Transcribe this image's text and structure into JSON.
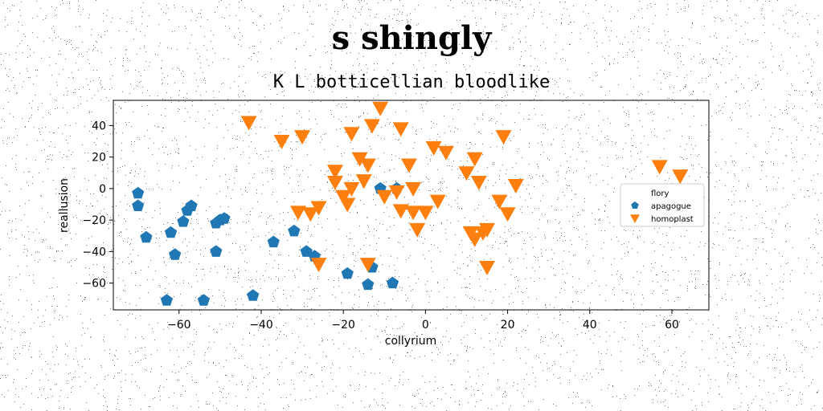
{
  "chart_data": {
    "type": "scatter",
    "title": "s shingly",
    "subtitle": "K L botticellian bloodlike",
    "xlabel": "collyrium",
    "ylabel": "reallusion",
    "xlim": [
      -76,
      69
    ],
    "ylim": [
      -77,
      56
    ],
    "xticks": [
      -60,
      -40,
      -20,
      0,
      20,
      40,
      60
    ],
    "yticks": [
      -60,
      -40,
      -20,
      0,
      20,
      40
    ],
    "xtick_labels": [
      "−60",
      "−40",
      "−20",
      "0",
      "20",
      "40",
      "60"
    ],
    "ytick_labels": [
      "−60",
      "−40",
      "−20",
      "0",
      "20",
      "40"
    ],
    "grid": false,
    "legend_position": "right",
    "legend_labels": [
      "flory",
      "apagogue",
      "homoplast"
    ],
    "series": [
      {
        "name": "flory",
        "marker": "none",
        "color": "#ffffff",
        "points": []
      },
      {
        "name": "apagogue",
        "marker": "pentagon",
        "color": "#1f77b4",
        "points": [
          [
            -70,
            -3
          ],
          [
            -70,
            -11
          ],
          [
            -68,
            -31
          ],
          [
            -62,
            -28
          ],
          [
            -61,
            -42
          ],
          [
            -59,
            -21
          ],
          [
            -58,
            -14
          ],
          [
            -57,
            -11
          ],
          [
            -51,
            -22
          ],
          [
            -50,
            -20
          ],
          [
            -51,
            -40
          ],
          [
            -49,
            -19
          ],
          [
            -63,
            -71
          ],
          [
            -54,
            -71
          ],
          [
            -42,
            -68
          ],
          [
            -37,
            -34
          ],
          [
            -32,
            -27
          ],
          [
            -29,
            -40
          ],
          [
            -27,
            -43
          ],
          [
            -19,
            -54
          ],
          [
            -14,
            -61
          ],
          [
            -13,
            -50
          ],
          [
            -11,
            0
          ],
          [
            -7,
            0
          ],
          [
            -8,
            -60
          ]
        ]
      },
      {
        "name": "homoplast",
        "marker": "triangle-down",
        "color": "#ff7f0e",
        "points": [
          [
            -43,
            42
          ],
          [
            -35,
            30
          ],
          [
            -30,
            33
          ],
          [
            -31,
            -15
          ],
          [
            -28,
            -16
          ],
          [
            -26,
            -12
          ],
          [
            -26,
            -48
          ],
          [
            -22,
            11
          ],
          [
            -22,
            4
          ],
          [
            -20,
            -5
          ],
          [
            -19,
            -10
          ],
          [
            -18,
            0
          ],
          [
            -18,
            35
          ],
          [
            -16,
            19
          ],
          [
            -15,
            5
          ],
          [
            -14,
            15
          ],
          [
            -14,
            -48
          ],
          [
            -13,
            40
          ],
          [
            -11,
            51
          ],
          [
            -10,
            -5
          ],
          [
            -7,
            -2
          ],
          [
            -6,
            38
          ],
          [
            -6,
            -14
          ],
          [
            -4,
            15
          ],
          [
            -3,
            0
          ],
          [
            -3,
            -15
          ],
          [
            -2,
            -26
          ],
          [
            0,
            -15
          ],
          [
            2,
            26
          ],
          [
            3,
            -8
          ],
          [
            5,
            23
          ],
          [
            10,
            10
          ],
          [
            11,
            -28
          ],
          [
            12,
            19
          ],
          [
            12,
            -32
          ],
          [
            13,
            4
          ],
          [
            14,
            -28
          ],
          [
            15,
            -26
          ],
          [
            15,
            -50
          ],
          [
            18,
            -8
          ],
          [
            19,
            33
          ],
          [
            20,
            -16
          ],
          [
            22,
            2
          ],
          [
            57,
            14
          ],
          [
            62,
            8
          ]
        ]
      }
    ]
  }
}
